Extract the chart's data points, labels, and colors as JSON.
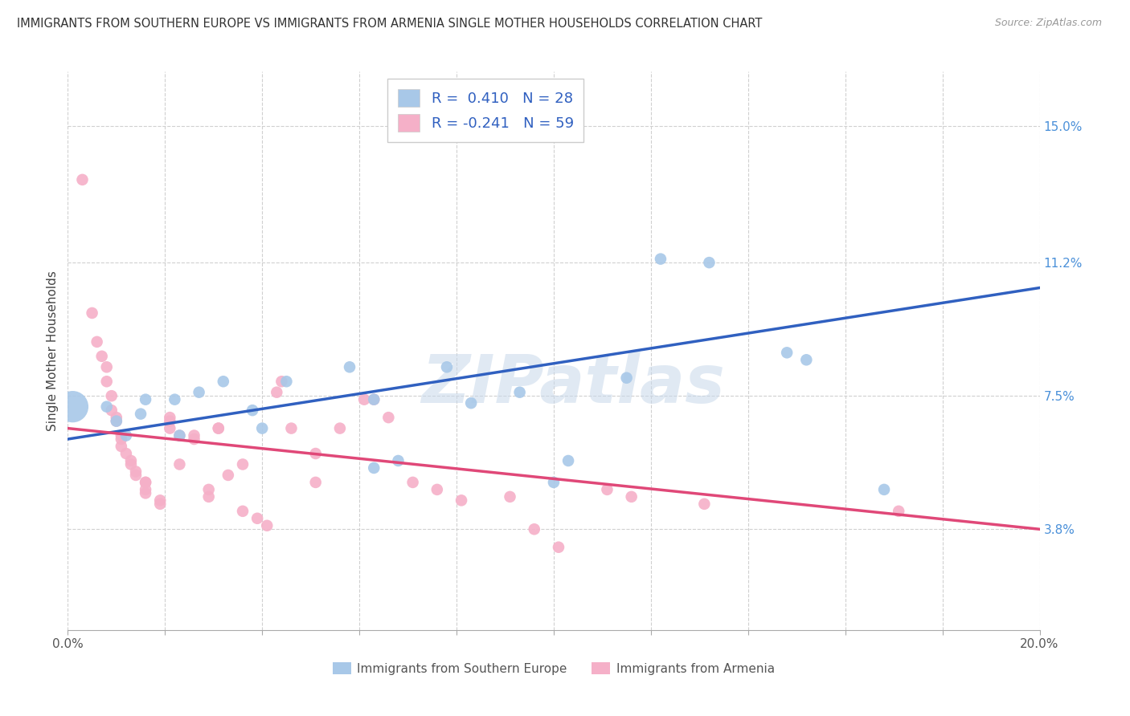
{
  "title": "IMMIGRANTS FROM SOUTHERN EUROPE VS IMMIGRANTS FROM ARMENIA SINGLE MOTHER HOUSEHOLDS CORRELATION CHART",
  "source": "Source: ZipAtlas.com",
  "ylabel": "Single Mother Households",
  "yticks_labels": [
    "3.8%",
    "7.5%",
    "11.2%",
    "15.0%"
  ],
  "ytick_vals": [
    0.038,
    0.075,
    0.112,
    0.15
  ],
  "xmin": 0.0,
  "xmax": 0.2,
  "ymin": 0.01,
  "ymax": 0.165,
  "legend_R_blue": "0.410",
  "legend_N_blue": "28",
  "legend_R_pink": "-0.241",
  "legend_N_pink": "59",
  "blue_color": "#a8c8e8",
  "pink_color": "#f5b0c8",
  "blue_line_color": "#3060c0",
  "pink_line_color": "#e04878",
  "watermark": "ZIPatlas",
  "blue_scatter": [
    [
      0.001,
      0.072
    ],
    [
      0.008,
      0.072
    ],
    [
      0.01,
      0.068
    ],
    [
      0.012,
      0.064
    ],
    [
      0.015,
      0.07
    ],
    [
      0.016,
      0.074
    ],
    [
      0.022,
      0.074
    ],
    [
      0.023,
      0.064
    ],
    [
      0.027,
      0.076
    ],
    [
      0.032,
      0.079
    ],
    [
      0.038,
      0.071
    ],
    [
      0.04,
      0.066
    ],
    [
      0.045,
      0.079
    ],
    [
      0.058,
      0.083
    ],
    [
      0.063,
      0.074
    ],
    [
      0.063,
      0.055
    ],
    [
      0.068,
      0.057
    ],
    [
      0.078,
      0.083
    ],
    [
      0.083,
      0.073
    ],
    [
      0.093,
      0.076
    ],
    [
      0.1,
      0.051
    ],
    [
      0.103,
      0.057
    ],
    [
      0.115,
      0.08
    ],
    [
      0.122,
      0.113
    ],
    [
      0.132,
      0.112
    ],
    [
      0.148,
      0.087
    ],
    [
      0.152,
      0.085
    ],
    [
      0.168,
      0.049
    ]
  ],
  "blue_large_dot": [
    0.001,
    0.072
  ],
  "blue_large_size": 800,
  "blue_regular_size": 110,
  "pink_scatter": [
    [
      0.003,
      0.135
    ],
    [
      0.005,
      0.098
    ],
    [
      0.006,
      0.09
    ],
    [
      0.007,
      0.086
    ],
    [
      0.008,
      0.083
    ],
    [
      0.008,
      0.079
    ],
    [
      0.009,
      0.075
    ],
    [
      0.009,
      0.071
    ],
    [
      0.01,
      0.069
    ],
    [
      0.01,
      0.068
    ],
    [
      0.011,
      0.064
    ],
    [
      0.011,
      0.063
    ],
    [
      0.011,
      0.061
    ],
    [
      0.012,
      0.059
    ],
    [
      0.013,
      0.057
    ],
    [
      0.013,
      0.056
    ],
    [
      0.014,
      0.054
    ],
    [
      0.014,
      0.053
    ],
    [
      0.016,
      0.051
    ],
    [
      0.016,
      0.051
    ],
    [
      0.016,
      0.049
    ],
    [
      0.016,
      0.048
    ],
    [
      0.019,
      0.046
    ],
    [
      0.019,
      0.045
    ],
    [
      0.021,
      0.069
    ],
    [
      0.021,
      0.068
    ],
    [
      0.021,
      0.066
    ],
    [
      0.023,
      0.064
    ],
    [
      0.023,
      0.056
    ],
    [
      0.026,
      0.064
    ],
    [
      0.026,
      0.063
    ],
    [
      0.029,
      0.049
    ],
    [
      0.029,
      0.047
    ],
    [
      0.031,
      0.066
    ],
    [
      0.031,
      0.066
    ],
    [
      0.033,
      0.053
    ],
    [
      0.036,
      0.056
    ],
    [
      0.036,
      0.043
    ],
    [
      0.039,
      0.041
    ],
    [
      0.041,
      0.039
    ],
    [
      0.043,
      0.076
    ],
    [
      0.044,
      0.079
    ],
    [
      0.046,
      0.066
    ],
    [
      0.051,
      0.059
    ],
    [
      0.051,
      0.051
    ],
    [
      0.056,
      0.066
    ],
    [
      0.061,
      0.074
    ],
    [
      0.063,
      0.074
    ],
    [
      0.066,
      0.069
    ],
    [
      0.071,
      0.051
    ],
    [
      0.076,
      0.049
    ],
    [
      0.081,
      0.046
    ],
    [
      0.091,
      0.047
    ],
    [
      0.096,
      0.038
    ],
    [
      0.101,
      0.033
    ],
    [
      0.111,
      0.049
    ],
    [
      0.116,
      0.047
    ],
    [
      0.131,
      0.045
    ],
    [
      0.171,
      0.043
    ]
  ],
  "pink_size": 110,
  "title_fontsize": 10.5,
  "axis_label_fontsize": 11,
  "tick_fontsize": 11,
  "legend_fontsize": 13,
  "blue_line_x0": 0.0,
  "blue_line_x1": 0.2,
  "blue_line_y0": 0.063,
  "blue_line_y1": 0.105,
  "pink_line_x0": 0.0,
  "pink_line_x1": 0.2,
  "pink_line_y0": 0.066,
  "pink_line_y1": 0.038
}
